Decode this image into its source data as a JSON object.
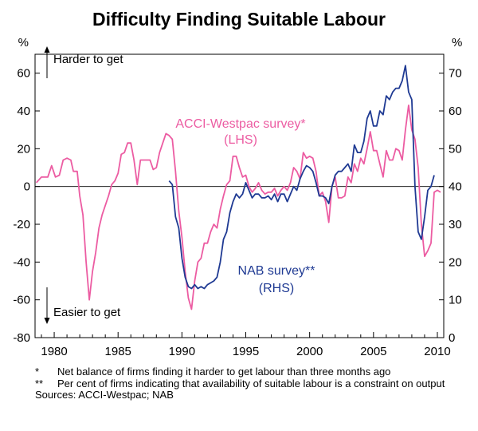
{
  "chart_data": {
    "type": "line",
    "title": "Difficulty Finding Suitable Labour",
    "left_axis": {
      "unit": "%",
      "ylim": [
        -80,
        70
      ],
      "ticks": [
        -80,
        -60,
        -40,
        -20,
        0,
        20,
        40,
        60
      ]
    },
    "right_axis": {
      "unit": "%",
      "ylim": [
        0,
        75
      ],
      "ticks": [
        0,
        10,
        20,
        30,
        40,
        50,
        60,
        70
      ]
    },
    "x_axis": {
      "xlim": [
        1978.5,
        2010.5
      ],
      "ticks": [
        1980,
        1985,
        1990,
        1995,
        2000,
        2005,
        2010
      ]
    },
    "annotations": {
      "harder": "Harder to get",
      "easier": "Easier to get",
      "acci_label_1": "ACCI-Westpac survey*",
      "acci_label_2": "(LHS)",
      "nab_label_1": "NAB survey**",
      "nab_label_2": "(RHS)"
    },
    "series": [
      {
        "name": "ACCI-Westpac survey",
        "axis": "left",
        "color": "#EC5CA2",
        "points": [
          [
            1978.6,
            2
          ],
          [
            1979.0,
            5
          ],
          [
            1979.5,
            5
          ],
          [
            1979.8,
            11
          ],
          [
            1980.1,
            5
          ],
          [
            1980.4,
            6
          ],
          [
            1980.7,
            14
          ],
          [
            1981.0,
            15
          ],
          [
            1981.3,
            14
          ],
          [
            1981.5,
            8
          ],
          [
            1981.8,
            8
          ],
          [
            1982.0,
            -5
          ],
          [
            1982.25,
            -15
          ],
          [
            1982.5,
            -40
          ],
          [
            1982.75,
            -60
          ],
          [
            1983.0,
            -45
          ],
          [
            1983.25,
            -35
          ],
          [
            1983.5,
            -22
          ],
          [
            1983.75,
            -15
          ],
          [
            1984.0,
            -10
          ],
          [
            1984.25,
            -5
          ],
          [
            1984.5,
            1
          ],
          [
            1984.75,
            3
          ],
          [
            1985.0,
            7
          ],
          [
            1985.25,
            17
          ],
          [
            1985.5,
            18
          ],
          [
            1985.75,
            23
          ],
          [
            1986.0,
            23
          ],
          [
            1986.25,
            14
          ],
          [
            1986.5,
            1
          ],
          [
            1986.75,
            14
          ],
          [
            1987.0,
            14
          ],
          [
            1987.5,
            14
          ],
          [
            1987.75,
            9
          ],
          [
            1988.0,
            10
          ],
          [
            1988.25,
            18
          ],
          [
            1988.5,
            23
          ],
          [
            1988.75,
            28
          ],
          [
            1989.0,
            27
          ],
          [
            1989.25,
            25
          ],
          [
            1989.5,
            8
          ],
          [
            1989.75,
            -13
          ],
          [
            1990.0,
            -27
          ],
          [
            1990.25,
            -45
          ],
          [
            1990.5,
            -59
          ],
          [
            1990.75,
            -65
          ],
          [
            1991.0,
            -50
          ],
          [
            1991.25,
            -40
          ],
          [
            1991.5,
            -38
          ],
          [
            1991.75,
            -30
          ],
          [
            1992.0,
            -30
          ],
          [
            1992.25,
            -24
          ],
          [
            1992.5,
            -20
          ],
          [
            1992.75,
            -22
          ],
          [
            1993.0,
            -12
          ],
          [
            1993.25,
            -5
          ],
          [
            1993.5,
            1
          ],
          [
            1993.75,
            3
          ],
          [
            1994.0,
            16
          ],
          [
            1994.25,
            16
          ],
          [
            1994.5,
            10
          ],
          [
            1994.75,
            5
          ],
          [
            1995.0,
            6
          ],
          [
            1995.25,
            0
          ],
          [
            1995.5,
            -3
          ],
          [
            1995.75,
            -1
          ],
          [
            1996.0,
            2
          ],
          [
            1996.25,
            -2
          ],
          [
            1996.5,
            -4
          ],
          [
            1996.75,
            -3
          ],
          [
            1997.0,
            -3
          ],
          [
            1997.25,
            -1
          ],
          [
            1997.5,
            -5
          ],
          [
            1997.75,
            -2
          ],
          [
            1998.0,
            0
          ],
          [
            1998.25,
            -2
          ],
          [
            1998.5,
            2
          ],
          [
            1998.75,
            10
          ],
          [
            1999.0,
            8
          ],
          [
            1999.25,
            4
          ],
          [
            1999.5,
            18
          ],
          [
            1999.75,
            15
          ],
          [
            2000.0,
            16
          ],
          [
            2000.25,
            15
          ],
          [
            2000.5,
            8
          ],
          [
            2000.75,
            -5
          ],
          [
            2001.0,
            -3
          ],
          [
            2001.25,
            -8
          ],
          [
            2001.5,
            -19
          ],
          [
            2001.75,
            0
          ],
          [
            2002.0,
            5
          ],
          [
            2002.25,
            -6
          ],
          [
            2002.5,
            -6
          ],
          [
            2002.75,
            -5
          ],
          [
            2003.0,
            5
          ],
          [
            2003.25,
            2
          ],
          [
            2003.5,
            12
          ],
          [
            2003.75,
            8
          ],
          [
            2004.0,
            15
          ],
          [
            2004.25,
            12
          ],
          [
            2004.5,
            20
          ],
          [
            2004.75,
            29
          ],
          [
            2005.0,
            19
          ],
          [
            2005.25,
            19
          ],
          [
            2005.5,
            12
          ],
          [
            2005.75,
            5
          ],
          [
            2006.0,
            19
          ],
          [
            2006.25,
            14
          ],
          [
            2006.5,
            14
          ],
          [
            2006.75,
            20
          ],
          [
            2007.0,
            19
          ],
          [
            2007.25,
            14
          ],
          [
            2007.5,
            30
          ],
          [
            2007.75,
            43
          ],
          [
            2008.0,
            30
          ],
          [
            2008.25,
            25
          ],
          [
            2008.5,
            10
          ],
          [
            2008.75,
            -20
          ],
          [
            2009.0,
            -37
          ],
          [
            2009.25,
            -34
          ],
          [
            2009.5,
            -30
          ],
          [
            2009.75,
            -3
          ],
          [
            2010.0,
            -2
          ],
          [
            2010.25,
            -3
          ]
        ]
      },
      {
        "name": "NAB survey",
        "axis": "right",
        "color": "#1F3A93",
        "points": [
          [
            1989.0,
            41.5
          ],
          [
            1989.25,
            40.5
          ],
          [
            1989.5,
            32
          ],
          [
            1989.75,
            29
          ],
          [
            1990.0,
            21
          ],
          [
            1990.25,
            16
          ],
          [
            1990.5,
            13.5
          ],
          [
            1990.75,
            13
          ],
          [
            1991.0,
            14
          ],
          [
            1991.25,
            13
          ],
          [
            1991.5,
            13.5
          ],
          [
            1991.75,
            13
          ],
          [
            1992.0,
            14
          ],
          [
            1992.25,
            14.5
          ],
          [
            1992.5,
            15
          ],
          [
            1992.75,
            16
          ],
          [
            1993.0,
            20
          ],
          [
            1993.25,
            26
          ],
          [
            1993.5,
            28
          ],
          [
            1993.75,
            33
          ],
          [
            1994.0,
            36
          ],
          [
            1994.25,
            38
          ],
          [
            1994.5,
            37
          ],
          [
            1994.75,
            38
          ],
          [
            1995.0,
            41
          ],
          [
            1995.25,
            39
          ],
          [
            1995.5,
            37
          ],
          [
            1995.75,
            38
          ],
          [
            1996.0,
            38
          ],
          [
            1996.25,
            37
          ],
          [
            1996.5,
            37
          ],
          [
            1996.75,
            37.5
          ],
          [
            1997.0,
            36.5
          ],
          [
            1997.25,
            38
          ],
          [
            1997.5,
            36
          ],
          [
            1997.75,
            38
          ],
          [
            1998.0,
            38
          ],
          [
            1998.25,
            36
          ],
          [
            1998.5,
            38
          ],
          [
            1998.75,
            40
          ],
          [
            1999.0,
            39
          ],
          [
            1999.25,
            42
          ],
          [
            1999.5,
            44
          ],
          [
            1999.75,
            45.5
          ],
          [
            2000.0,
            45
          ],
          [
            2000.25,
            44
          ],
          [
            2000.5,
            41
          ],
          [
            2000.75,
            37.5
          ],
          [
            2001.0,
            37.5
          ],
          [
            2001.25,
            37
          ],
          [
            2001.5,
            35.5
          ],
          [
            2001.75,
            40
          ],
          [
            2002.0,
            43
          ],
          [
            2002.25,
            44
          ],
          [
            2002.5,
            44
          ],
          [
            2002.75,
            45
          ],
          [
            2003.0,
            46
          ],
          [
            2003.25,
            44
          ],
          [
            2003.5,
            51
          ],
          [
            2003.75,
            49
          ],
          [
            2004.0,
            49
          ],
          [
            2004.25,
            52
          ],
          [
            2004.5,
            58
          ],
          [
            2004.75,
            60
          ],
          [
            2005.0,
            56
          ],
          [
            2005.25,
            56
          ],
          [
            2005.5,
            60
          ],
          [
            2005.75,
            59
          ],
          [
            2006.0,
            64
          ],
          [
            2006.25,
            63
          ],
          [
            2006.5,
            65
          ],
          [
            2006.75,
            66
          ],
          [
            2007.0,
            66
          ],
          [
            2007.25,
            68
          ],
          [
            2007.5,
            72
          ],
          [
            2007.75,
            65
          ],
          [
            2008.0,
            63
          ],
          [
            2008.25,
            40
          ],
          [
            2008.5,
            28
          ],
          [
            2008.75,
            26
          ],
          [
            2009.0,
            32
          ],
          [
            2009.25,
            39
          ],
          [
            2009.5,
            40
          ],
          [
            2009.75,
            43
          ]
        ]
      }
    ]
  },
  "footnotes": [
    {
      "mark": "*",
      "text": "Net balance of firms finding it harder to get labour than three months ago"
    },
    {
      "mark": "**",
      "text": "Per cent of firms indicating that availability of suitable labour is a constraint on output"
    }
  ],
  "sources": "Sources: ACCI-Westpac; NAB"
}
